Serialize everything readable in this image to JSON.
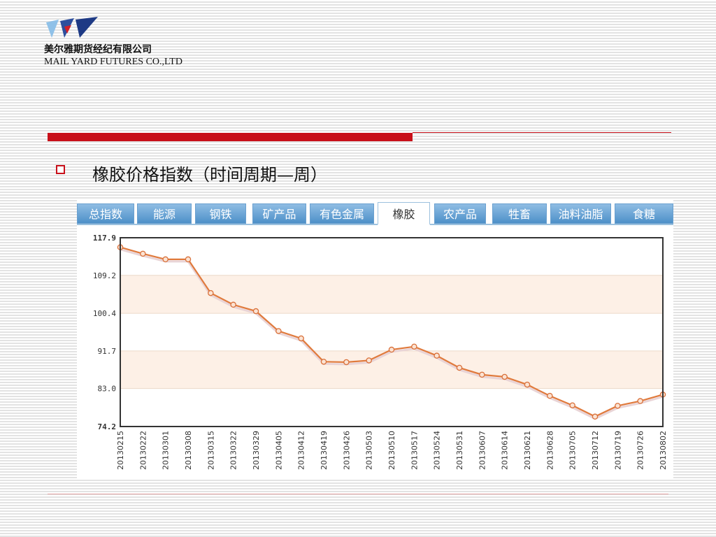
{
  "company": {
    "name_cn": "美尔雅期货经纪有限公司",
    "name_en": "MAIL YARD FUTURES CO.,LTD"
  },
  "slide": {
    "heading": "橡胶价格指数（时间周期—周）"
  },
  "tabs": [
    {
      "label": "总指数",
      "active": false
    },
    {
      "label": "能源",
      "active": false
    },
    {
      "label": "钢铁",
      "active": false
    },
    {
      "label": "矿产品",
      "active": false
    },
    {
      "label": "有色金属",
      "active": false
    },
    {
      "label": "橡胶",
      "active": true
    },
    {
      "label": "农产品",
      "active": false
    },
    {
      "label": "牲畜",
      "active": false
    },
    {
      "label": "油料油脂",
      "active": false
    },
    {
      "label": "食糖",
      "active": false
    }
  ],
  "colors": {
    "accent_red": "#c8101a",
    "line": "#e07a3c",
    "band": "#fdf0e6",
    "tab": "#5b9bd1"
  },
  "chart_data": {
    "type": "line",
    "title": "",
    "xlabel": "",
    "ylabel": "",
    "ylim": [
      74.2,
      117.9
    ],
    "yticks": [
      "74.2",
      "83.0",
      "91.7",
      "100.4",
      "109.2",
      "117.9"
    ],
    "grid": true,
    "x": [
      "20130215",
      "20130222",
      "20130301",
      "20130308",
      "20130315",
      "20130322",
      "20130329",
      "20130405",
      "20130412",
      "20130419",
      "20130426",
      "20130503",
      "20130510",
      "20130517",
      "20130524",
      "20130531",
      "20130607",
      "20130614",
      "20130621",
      "20130628",
      "20130705",
      "20130712",
      "20130719",
      "20130726",
      "20130802"
    ],
    "series": [
      {
        "values": [
          115.7,
          114.2,
          112.9,
          112.9,
          105.1,
          102.4,
          100.9,
          96.3,
          94.6,
          89.2,
          89.1,
          89.5,
          92.0,
          92.7,
          90.6,
          87.8,
          86.2,
          85.7,
          83.9,
          81.3,
          79.1,
          76.5,
          79.0,
          80.1,
          81.6
        ]
      }
    ]
  }
}
